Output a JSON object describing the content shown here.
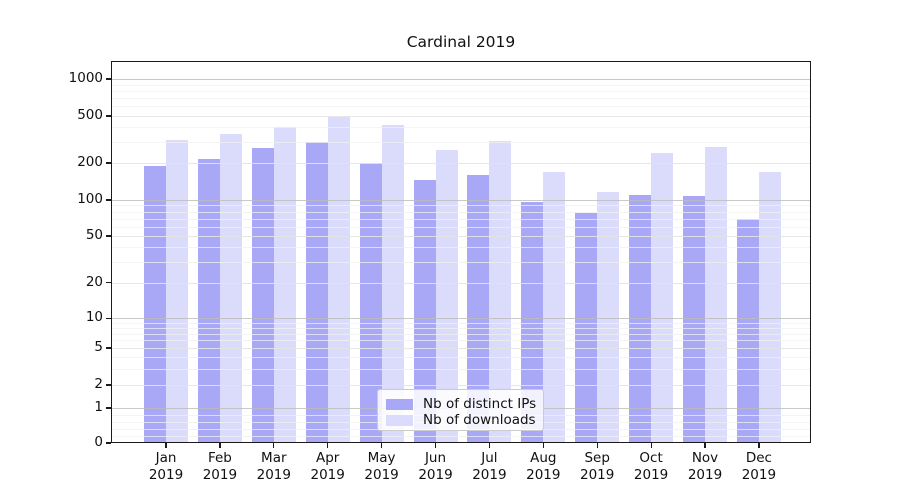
{
  "chart_data": {
    "type": "bar",
    "title": "Cardinal 2019",
    "categories": [
      "Jan",
      "Feb",
      "Mar",
      "Apr",
      "May",
      "Jun",
      "Jul",
      "Aug",
      "Sep",
      "Oct",
      "Nov",
      "Dec"
    ],
    "x_year_line": "2019",
    "series": [
      {
        "name": "Nb of distinct IPs",
        "color": "#a8a8f6",
        "values": [
          190,
          215,
          270,
          300,
          200,
          145,
          160,
          96,
          78,
          110,
          107,
          70
        ]
      },
      {
        "name": "Nb of downloads",
        "color": "#dbdbfb",
        "values": [
          315,
          355,
          400,
          490,
          420,
          260,
          310,
          170,
          116,
          245,
          275,
          170
        ]
      }
    ],
    "yscale": "symlog",
    "yticks": [
      0,
      1,
      2,
      5,
      10,
      20,
      50,
      100,
      200,
      500,
      1000
    ],
    "ylim": [
      0,
      1300
    ],
    "grid": true,
    "grid_major_color": "#bcbcbc",
    "grid_labeled_color": "#e3e3e3",
    "grid_minor_color": "#f0f0f0",
    "legend_position": "lower center"
  }
}
